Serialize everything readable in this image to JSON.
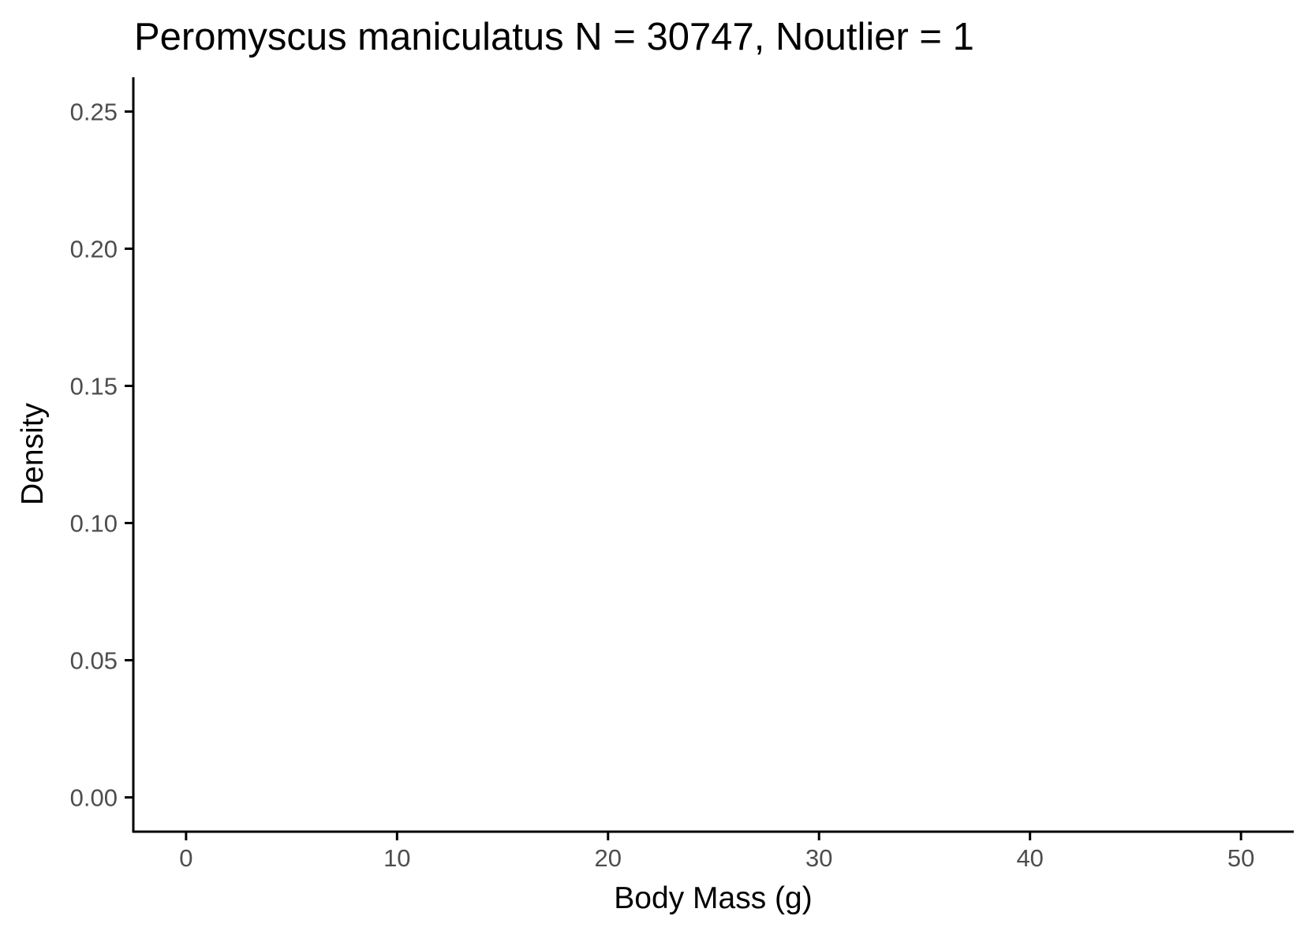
{
  "chart_data": {
    "type": "area",
    "title": "Peromyscus maniculatus N = 30747, Noutlier = 1",
    "xlabel": "Body Mass (g)",
    "ylabel": "Density",
    "xlim": [
      -2.5,
      52.5
    ],
    "ylim": [
      -0.0125,
      0.2625
    ],
    "x_ticks": [
      0,
      10,
      20,
      30,
      40,
      50
    ],
    "x_tick_labels": [
      "0",
      "10",
      "20",
      "30",
      "40",
      "50"
    ],
    "y_ticks": [
      0.0,
      0.05,
      0.1,
      0.15,
      0.2,
      0.25
    ],
    "y_tick_labels": [
      "0.00",
      "0.05",
      "0.10",
      "0.15",
      "0.20",
      "0.25"
    ],
    "grid": false,
    "series": []
  }
}
